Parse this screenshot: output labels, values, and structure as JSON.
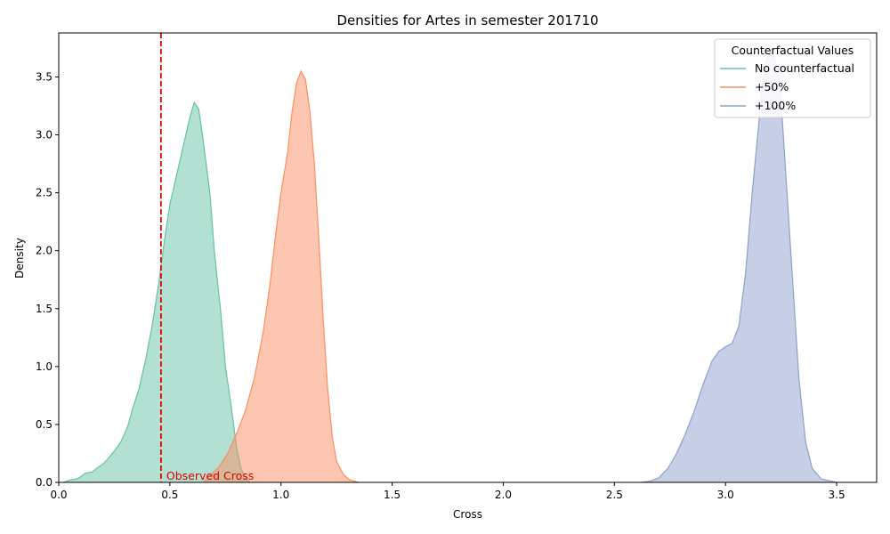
{
  "chart_data": {
    "type": "area",
    "title": "Densities for Artes in semester 201710",
    "xlabel": "Cross",
    "ylabel": "Density",
    "xlim": [
      0.0,
      3.68
    ],
    "ylim": [
      0.0,
      3.88
    ],
    "x_ticks": [
      "0.0",
      "0.5",
      "1.0",
      "1.5",
      "2.0",
      "2.5",
      "3.0",
      "3.5"
    ],
    "y_ticks": [
      "0.0",
      "0.5",
      "1.0",
      "1.5",
      "2.0",
      "2.5",
      "3.0",
      "3.5"
    ],
    "grid": false,
    "legend": {
      "title": "Counterfactual Values",
      "placement": "top-right"
    },
    "series": [
      {
        "name": "No counterfactual",
        "color": "#66c2a5",
        "points": [
          [
            0.02,
            0.0
          ],
          [
            0.05,
            0.02
          ],
          [
            0.08,
            0.03
          ],
          [
            0.1,
            0.05
          ],
          [
            0.12,
            0.08
          ],
          [
            0.15,
            0.09
          ],
          [
            0.17,
            0.12
          ],
          [
            0.2,
            0.16
          ],
          [
            0.22,
            0.2
          ],
          [
            0.25,
            0.27
          ],
          [
            0.28,
            0.35
          ],
          [
            0.31,
            0.48
          ],
          [
            0.33,
            0.62
          ],
          [
            0.36,
            0.8
          ],
          [
            0.39,
            1.05
          ],
          [
            0.42,
            1.35
          ],
          [
            0.45,
            1.72
          ],
          [
            0.48,
            2.15
          ],
          [
            0.5,
            2.4
          ],
          [
            0.53,
            2.65
          ],
          [
            0.56,
            2.9
          ],
          [
            0.59,
            3.15
          ],
          [
            0.61,
            3.28
          ],
          [
            0.63,
            3.22
          ],
          [
            0.65,
            2.95
          ],
          [
            0.68,
            2.5
          ],
          [
            0.7,
            2.0
          ],
          [
            0.73,
            1.45
          ],
          [
            0.75,
            1.0
          ],
          [
            0.78,
            0.6
          ],
          [
            0.8,
            0.3
          ],
          [
            0.82,
            0.12
          ],
          [
            0.84,
            0.04
          ],
          [
            0.86,
            0.0
          ]
        ]
      },
      {
        "name": "+50%",
        "color": "#fc8d62",
        "points": [
          [
            0.65,
            0.0
          ],
          [
            0.68,
            0.06
          ],
          [
            0.72,
            0.13
          ],
          [
            0.76,
            0.25
          ],
          [
            0.8,
            0.42
          ],
          [
            0.84,
            0.62
          ],
          [
            0.88,
            0.9
          ],
          [
            0.92,
            1.3
          ],
          [
            0.95,
            1.7
          ],
          [
            0.98,
            2.2
          ],
          [
            1.0,
            2.5
          ],
          [
            1.03,
            2.85
          ],
          [
            1.05,
            3.2
          ],
          [
            1.07,
            3.45
          ],
          [
            1.09,
            3.55
          ],
          [
            1.11,
            3.48
          ],
          [
            1.13,
            3.2
          ],
          [
            1.15,
            2.75
          ],
          [
            1.17,
            2.1
          ],
          [
            1.19,
            1.4
          ],
          [
            1.21,
            0.8
          ],
          [
            1.23,
            0.4
          ],
          [
            1.25,
            0.18
          ],
          [
            1.28,
            0.07
          ],
          [
            1.31,
            0.02
          ],
          [
            1.35,
            0.0
          ]
        ]
      },
      {
        "name": "+100%",
        "color": "#8da0cb",
        "points": [
          [
            2.62,
            0.0
          ],
          [
            2.66,
            0.01
          ],
          [
            2.7,
            0.04
          ],
          [
            2.74,
            0.12
          ],
          [
            2.78,
            0.25
          ],
          [
            2.82,
            0.42
          ],
          [
            2.86,
            0.62
          ],
          [
            2.9,
            0.85
          ],
          [
            2.94,
            1.05
          ],
          [
            2.97,
            1.13
          ],
          [
            3.0,
            1.17
          ],
          [
            3.03,
            1.2
          ],
          [
            3.06,
            1.35
          ],
          [
            3.09,
            1.8
          ],
          [
            3.12,
            2.5
          ],
          [
            3.15,
            3.1
          ],
          [
            3.17,
            3.5
          ],
          [
            3.19,
            3.68
          ],
          [
            3.21,
            3.72
          ],
          [
            3.23,
            3.6
          ],
          [
            3.25,
            3.3
          ],
          [
            3.27,
            2.7
          ],
          [
            3.3,
            1.8
          ],
          [
            3.33,
            0.9
          ],
          [
            3.36,
            0.35
          ],
          [
            3.39,
            0.12
          ],
          [
            3.43,
            0.03
          ],
          [
            3.5,
            0.0
          ]
        ]
      }
    ],
    "observed": {
      "value": 0.46,
      "label": "Observed Cross",
      "color": "#e00000"
    }
  }
}
